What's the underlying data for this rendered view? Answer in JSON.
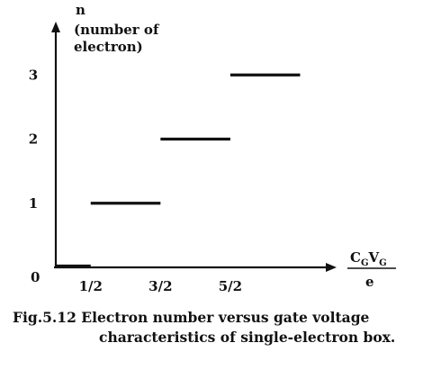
{
  "chart_data": {
    "type": "line",
    "style": "step-levels",
    "series": [
      {
        "segments": [
          {
            "x": [
              0,
              0.5
            ],
            "y": 0
          },
          {
            "x": [
              0.5,
              1.5
            ],
            "y": 1
          },
          {
            "x": [
              1.5,
              2.5
            ],
            "y": 2
          },
          {
            "x": [
              2.5,
              3.5
            ],
            "y": 3
          }
        ]
      }
    ],
    "xlim": [
      0,
      4.1
    ],
    "ylim": [
      0,
      4
    ],
    "x_ticks": [
      {
        "value": 0.5,
        "label": "1/2"
      },
      {
        "value": 1.5,
        "label": "3/2"
      },
      {
        "value": 2.5,
        "label": "5/2"
      }
    ],
    "y_ticks": [
      {
        "value": 1,
        "label": "1"
      },
      {
        "value": 2,
        "label": "2"
      },
      {
        "value": 3,
        "label": "3"
      }
    ],
    "origin_label": "0",
    "y_axis_symbol": "n",
    "y_axis_note_line1": "(number of",
    "y_axis_note_line2": "electron)",
    "x_axis_label": {
      "c": "C",
      "c_sub": "G",
      "v": "V",
      "v_sub": "G",
      "denominator": "e"
    },
    "grid": false
  },
  "caption": {
    "line1": "Fig.5.12 Electron number versus gate voltage",
    "line2": "characteristics of single-electron box."
  }
}
